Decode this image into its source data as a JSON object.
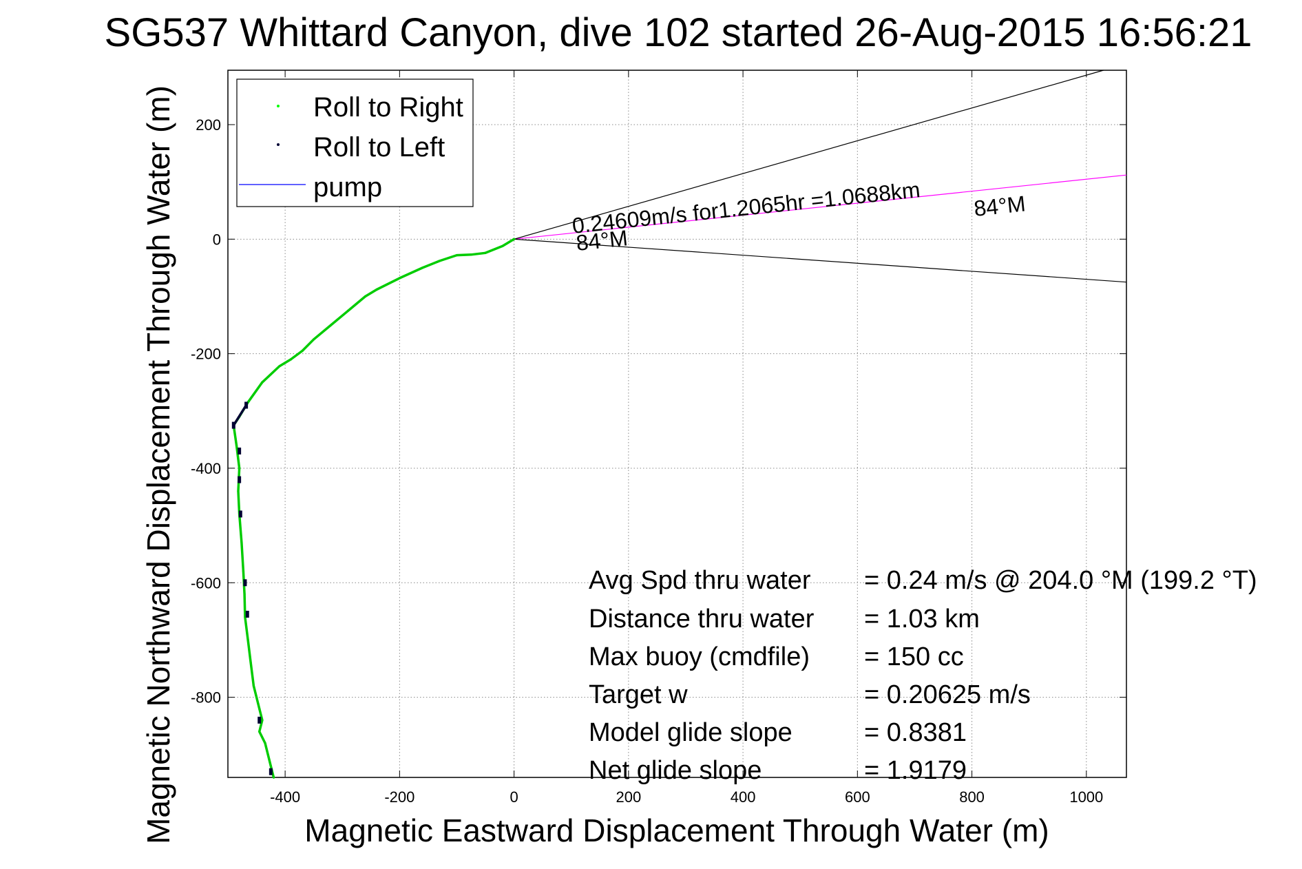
{
  "chart_data": {
    "type": "line",
    "title": "SG537 Whittard Canyon, dive 102 started 26-Aug-2015 16:56:21",
    "xlabel": "Magnetic Eastward Displacement Through Water (m)",
    "ylabel": "Magnetic Northward Displacement Through Water (m)",
    "xlim": [
      -500,
      1070
    ],
    "ylim": [
      -940,
      295
    ],
    "xticks": [
      -400,
      -200,
      0,
      200,
      400,
      600,
      800,
      1000
    ],
    "yticks": [
      200,
      0,
      -200,
      -400,
      -600,
      -800
    ],
    "grid": true,
    "legend": {
      "position": "top-left",
      "entries": [
        {
          "label": "Roll to Right",
          "color": "#00ff00",
          "marker": "dot"
        },
        {
          "label": "Roll to Left",
          "color": "#000033",
          "marker": "dot"
        },
        {
          "label": "pump",
          "color": "#0000ff",
          "marker": "line"
        }
      ]
    },
    "series": [
      {
        "name": "Roll to Right",
        "color": "#00cc00",
        "x": [
          0,
          -20,
          -50,
          -75,
          -100,
          -130,
          -160,
          -200,
          -240,
          -260,
          -290,
          -320,
          -350,
          -370,
          -390,
          -410,
          -440,
          -465,
          -480,
          -490,
          -485,
          -480,
          -482,
          -480,
          -476,
          -473,
          -471,
          -470,
          -465,
          -460,
          -455,
          -445,
          -440,
          -445,
          -435,
          -425,
          -420
        ],
        "y": [
          0,
          -12,
          -24,
          -27,
          -28,
          -38,
          -50,
          -68,
          -88,
          -100,
          -125,
          -150,
          -175,
          -195,
          -210,
          -222,
          -250,
          -285,
          -310,
          -325,
          -360,
          -400,
          -440,
          -480,
          -530,
          -580,
          -620,
          -660,
          -700,
          -740,
          -780,
          -820,
          -840,
          -860,
          -880,
          -920,
          -940
        ]
      },
      {
        "name": "Roll to Left",
        "color": "#000033",
        "x": [
          -490,
          -468,
          -480,
          -480,
          -478,
          -470,
          -466,
          -445,
          -425
        ],
        "y": [
          -325,
          -290,
          -370,
          -420,
          -480,
          -600,
          -655,
          -840,
          -930
        ]
      }
    ],
    "reference_lines": [
      {
        "name": "heading 84M track",
        "color": "#ff00ff",
        "x": [
          0,
          1070
        ],
        "y": [
          0,
          112
        ]
      },
      {
        "name": "upper bound",
        "color": "#000000",
        "x": [
          0,
          1030
        ],
        "y": [
          0,
          295
        ]
      },
      {
        "name": "lower bound",
        "color": "#000000",
        "x": [
          0,
          1070
        ],
        "y": [
          0,
          -75
        ]
      }
    ],
    "annotations": [
      {
        "text": "0.24609m/s for1.2065hr =1.0688km",
        "x": 103,
        "y": 10,
        "rotate": -6
      },
      {
        "text": "84°M",
        "x": 805,
        "y": 40,
        "rotate": -6
      },
      {
        "text": "84°M",
        "x": 110,
        "y": -20,
        "rotate": -6
      }
    ],
    "stats": [
      {
        "label": "Avg Spd thru water",
        "value": "=  0.24 m/s @ 204.0 °M (199.2 °T)"
      },
      {
        "label": "Distance thru water",
        "value": "=  1.03 km"
      },
      {
        "label": "Max buoy (cmdfile)",
        "value": "= 150 cc"
      },
      {
        "label": "Target w",
        "value": "= 0.20625 m/s"
      },
      {
        "label": "Model glide slope",
        "value": "= 0.8381"
      },
      {
        "label": "Net glide slope",
        "value": "= 1.9179"
      }
    ]
  }
}
